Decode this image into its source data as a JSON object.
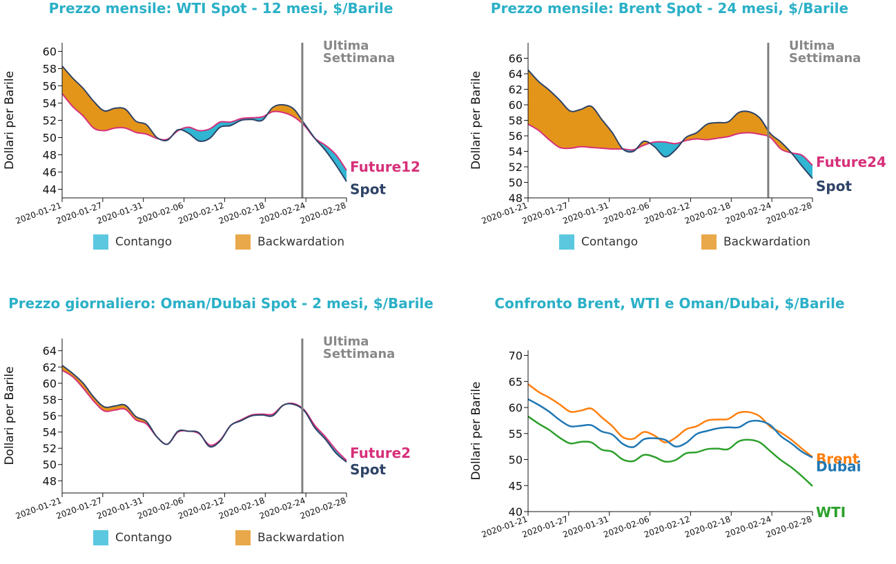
{
  "colors": {
    "title": "#2bb0c7",
    "contango": "#5bc8e0",
    "backwardation": "#e9a84a",
    "contango_fill": "#30b5d2",
    "backwardation_fill": "#e3951a",
    "spot": "#2e4366",
    "future": "#d6307a",
    "marker": "#808080",
    "brent": "#ff7f0e",
    "dubai": "#1f77b4",
    "wti": "#2ca02c"
  },
  "legend": {
    "contango": "Contango",
    "backwardation": "Backwardation"
  },
  "chart_data": [
    {
      "type": "area",
      "title": "Prezzo mensile: WTI Spot - 12 mesi, $/Barile",
      "ylabel": "Dollari per Barile",
      "ylim": [
        43,
        61
      ],
      "yticks": [
        44,
        46,
        48,
        50,
        52,
        54,
        56,
        58,
        60
      ],
      "xticks": [
        "2020-01-21",
        "2020-01-27",
        "2020-01-31",
        "2020-02-06",
        "2020-02-12",
        "2020-02-18",
        "2020-02-24",
        "2020-02-28"
      ],
      "x": [
        0,
        1,
        2,
        3,
        4,
        5,
        6,
        7,
        8,
        9,
        10,
        11,
        12,
        13,
        14,
        15,
        16,
        17,
        18,
        19,
        20,
        21,
        22,
        23,
        24,
        25,
        26,
        27
      ],
      "annotation": {
        "text_line1": "Ultima",
        "text_line2": "Settimana",
        "at_x": 22.8
      },
      "series": [
        {
          "name": "Spot",
          "values": [
            58.3,
            56.9,
            55.7,
            54.2,
            53.1,
            53.4,
            53.3,
            51.9,
            51.5,
            50.0,
            49.7,
            50.9,
            50.5,
            49.6,
            49.9,
            51.2,
            51.4,
            52.0,
            52.1,
            52.0,
            53.5,
            53.8,
            53.3,
            51.6,
            49.9,
            48.5,
            46.8,
            44.9
          ]
        },
        {
          "name": "Future12",
          "values": [
            55.1,
            53.6,
            52.5,
            51.1,
            50.8,
            51.1,
            51.1,
            50.6,
            50.4,
            49.9,
            49.8,
            50.8,
            51.2,
            50.8,
            51.0,
            51.8,
            51.8,
            52.2,
            52.3,
            52.4,
            53.0,
            52.9,
            52.4,
            51.4,
            49.9,
            49.1,
            48.0,
            46.2
          ]
        }
      ]
    },
    {
      "type": "area",
      "title": "Prezzo mensile: Brent Spot - 24 mesi, $/Barile",
      "ylabel": "Dollari per Barile",
      "ylim": [
        48,
        68
      ],
      "yticks": [
        48,
        50,
        52,
        54,
        56,
        58,
        60,
        62,
        64,
        66
      ],
      "xticks": [
        "2020-01-21",
        "2020-01-27",
        "2020-01-31",
        "2020-02-06",
        "2020-02-12",
        "2020-02-18",
        "2020-02-24",
        "2020-02-28"
      ],
      "x": [
        0,
        1,
        2,
        3,
        4,
        5,
        6,
        7,
        8,
        9,
        10,
        11,
        12,
        13,
        14,
        15,
        16,
        17,
        18,
        19,
        20,
        21,
        22,
        23,
        24,
        25,
        26,
        27
      ],
      "annotation": {
        "text_line1": "Ultima",
        "text_line2": "Settimana",
        "at_x": 22.8
      },
      "series": [
        {
          "name": "Spot",
          "values": [
            64.5,
            63.0,
            61.9,
            60.6,
            59.2,
            59.4,
            59.8,
            58.1,
            56.4,
            54.3,
            54.0,
            55.3,
            54.6,
            53.3,
            54.2,
            55.8,
            56.4,
            57.5,
            57.7,
            57.8,
            59.0,
            59.1,
            58.3,
            56.3,
            55.2,
            53.8,
            52.1,
            50.5
          ]
        },
        {
          "name": "Future24",
          "values": [
            57.5,
            56.7,
            55.5,
            54.5,
            54.4,
            54.6,
            54.5,
            54.4,
            54.3,
            54.3,
            54.2,
            54.8,
            55.2,
            55.2,
            55.0,
            55.4,
            55.6,
            55.5,
            55.7,
            55.9,
            56.3,
            56.4,
            56.2,
            55.8,
            54.3,
            53.8,
            53.5,
            52.2
          ]
        }
      ]
    },
    {
      "type": "area",
      "title": "Prezzo giornaliero: Oman/Dubai Spot - 2 mesi, $/Barile",
      "ylabel": "Dollari per Barile",
      "ylim": [
        46.5,
        65.5
      ],
      "yticks": [
        48,
        50,
        52,
        54,
        56,
        58,
        60,
        62,
        64
      ],
      "xticks": [
        "2020-01-21",
        "2020-01-27",
        "2020-01-31",
        "2020-02-06",
        "2020-02-12",
        "2020-02-18",
        "2020-02-24",
        "2020-02-28"
      ],
      "x": [
        0,
        1,
        2,
        3,
        4,
        5,
        6,
        7,
        8,
        9,
        10,
        11,
        12,
        13,
        14,
        15,
        16,
        17,
        18,
        19,
        20,
        21,
        22,
        23,
        24,
        25,
        26,
        27
      ],
      "annotation": {
        "text_line1": "Ultima",
        "text_line2": "Settimana",
        "at_x": 22.8
      },
      "series": [
        {
          "name": "Spot",
          "values": [
            62.2,
            61.2,
            60.0,
            58.3,
            57.1,
            57.2,
            57.3,
            55.9,
            55.3,
            53.4,
            52.5,
            54.1,
            54.1,
            53.9,
            52.2,
            52.9,
            54.8,
            55.4,
            56.0,
            56.1,
            56.0,
            57.3,
            57.4,
            56.6,
            54.5,
            53.1,
            51.4,
            50.3
          ]
        },
        {
          "name": "Future2",
          "values": [
            61.6,
            60.8,
            59.4,
            57.8,
            56.6,
            56.7,
            56.8,
            55.5,
            55.0,
            53.4,
            52.5,
            54.0,
            54.1,
            53.8,
            52.4,
            53.0,
            54.8,
            55.5,
            56.1,
            56.2,
            56.2,
            57.3,
            57.5,
            56.7,
            54.8,
            53.4,
            51.8,
            50.5
          ]
        }
      ]
    },
    {
      "type": "line",
      "title": "Confronto Brent, WTI e Oman/Dubai, $/Barile",
      "ylabel": "Dollari per Barile",
      "ylim": [
        40,
        71
      ],
      "yticks": [
        40,
        45,
        50,
        55,
        60,
        65,
        70
      ],
      "xticks": [
        "2020-01-21",
        "2020-01-27",
        "2020-01-31",
        "2020-02-06",
        "2020-02-12",
        "2020-02-18",
        "2020-02-24",
        "2020-02-28"
      ],
      "x": [
        0,
        1,
        2,
        3,
        4,
        5,
        6,
        7,
        8,
        9,
        10,
        11,
        12,
        13,
        14,
        15,
        16,
        17,
        18,
        19,
        20,
        21,
        22,
        23,
        24,
        25,
        26,
        27
      ],
      "series": [
        {
          "name": "Brent",
          "values": [
            64.5,
            63.0,
            61.9,
            60.6,
            59.2,
            59.4,
            59.8,
            58.1,
            56.4,
            54.3,
            54.0,
            55.3,
            54.6,
            53.3,
            54.2,
            55.8,
            56.4,
            57.5,
            57.7,
            57.8,
            59.0,
            59.1,
            58.3,
            56.3,
            55.2,
            53.8,
            52.1,
            50.5
          ]
        },
        {
          "name": "Dubai",
          "values": [
            61.6,
            60.5,
            59.2,
            57.6,
            56.4,
            56.5,
            56.6,
            55.4,
            54.8,
            53.0,
            52.4,
            53.9,
            54.1,
            53.8,
            52.5,
            53.2,
            54.9,
            55.5,
            56.0,
            56.2,
            56.2,
            57.3,
            57.4,
            56.6,
            54.5,
            53.1,
            51.5,
            50.4
          ]
        },
        {
          "name": "WTI",
          "values": [
            58.3,
            56.9,
            55.7,
            54.2,
            53.1,
            53.4,
            53.3,
            51.9,
            51.5,
            50.0,
            49.7,
            50.9,
            50.5,
            49.6,
            49.9,
            51.2,
            51.4,
            52.0,
            52.1,
            52.0,
            53.5,
            53.8,
            53.3,
            51.6,
            49.9,
            48.5,
            46.8,
            44.9
          ]
        }
      ]
    }
  ]
}
